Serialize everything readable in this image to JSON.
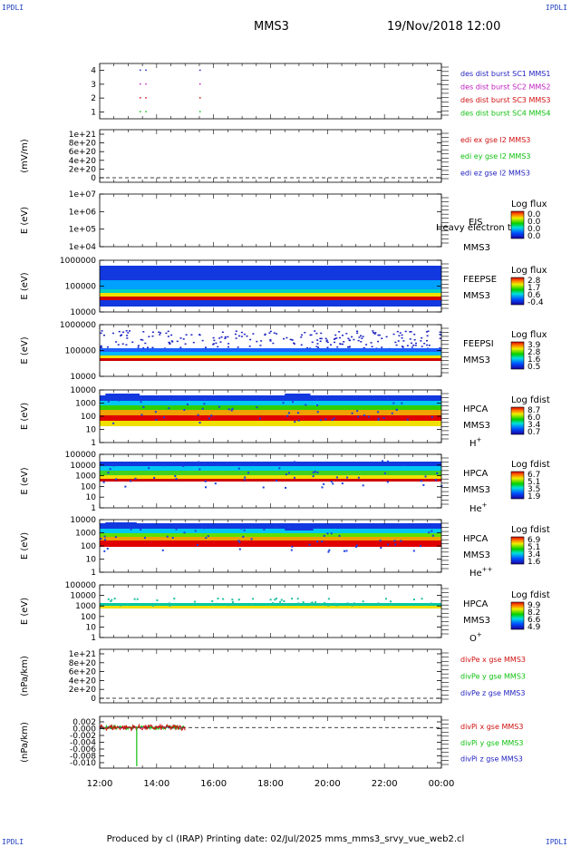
{
  "corner_tag": "IPDLI",
  "header": {
    "spacecraft": "MMS3",
    "datetime": "19/Nov/2018 12:00"
  },
  "footer": "Produced by cl (IRAP)   Printing date: 02/Jul/2025   mms_mms3_srvy_vue_web2.cl",
  "x_axis": {
    "labels": [
      "12:00",
      "14:00",
      "16:00",
      "18:00",
      "20:00",
      "22:00",
      "00:00"
    ]
  },
  "chart_data": [
    {
      "type": "scatter",
      "name_id": "burst-panel",
      "ylim": [
        0.5,
        4.5
      ],
      "yticks": [
        "1",
        "2",
        "3",
        "4"
      ],
      "points_x_hours": [
        13.4,
        13.6,
        15.5
      ],
      "legend": [
        {
          "text": "des dist burst SC1 MMS1",
          "color": "#1f1fbf"
        },
        {
          "text": "des dist burst SC2 MMS2",
          "color": "#c020c0"
        },
        {
          "text": "des dist burst SC3 MMS3",
          "color": "#d01010"
        },
        {
          "text": "des dist burst SC4 MMS4",
          "color": "#10c010"
        }
      ]
    },
    {
      "type": "line",
      "name_id": "edi-panel",
      "ylabel": "(mV/m)",
      "yticks": [
        "0",
        "2e+20",
        "4e+20",
        "6e+20",
        "8e+20",
        "1e+21"
      ],
      "legend": [
        {
          "text": "edi ex gse l2 MMS3",
          "color": "#d01010"
        },
        {
          "text": "edi ey gse l2 MMS3",
          "color": "#10c010"
        },
        {
          "text": "edi ez gse l2 MMS3",
          "color": "#1f1fbf"
        }
      ]
    },
    {
      "type": "heatmap",
      "name_id": "eis-panel",
      "ylabel": "E (eV)",
      "yticks": [
        "1e+04",
        "1e+05",
        "1e+06",
        "1e+07"
      ],
      "labels": [
        "EIS",
        "Heavy electron tof",
        "MMS3"
      ],
      "colorbar": {
        "title": "Log flux",
        "ticks": [
          "0.0",
          "0.0",
          "0.0",
          "0.0"
        ]
      }
    },
    {
      "type": "heatmap",
      "name_id": "feepse-panel",
      "ylabel": "E (eV)",
      "yticks": [
        "10000",
        "100000",
        "1000000"
      ],
      "labels": [
        "FEEPSE",
        "MMS3"
      ],
      "colorbar": {
        "title": "Log flux",
        "ticks": [
          "2.8",
          "1.7",
          "0.6",
          "-0.4"
        ]
      }
    },
    {
      "type": "heatmap",
      "name_id": "feepsi-panel",
      "ylabel": "E (eV)",
      "yticks": [
        "10000",
        "100000",
        "1000000"
      ],
      "labels": [
        "FEEPSI",
        "MMS3"
      ],
      "colorbar": {
        "title": "Log flux",
        "ticks": [
          "3.9",
          "2.8",
          "1.6",
          "0.5"
        ]
      }
    },
    {
      "type": "heatmap",
      "name_id": "hpca-h-panel",
      "ylabel": "E (eV)",
      "yticks": [
        "1",
        "10",
        "100",
        "1000",
        "10000"
      ],
      "labels": [
        "HPCA",
        "MMS3"
      ],
      "species": "H",
      "sup": "+",
      "colorbar": {
        "title": "Log fdist",
        "ticks": [
          "8.7",
          "6.0",
          "3.4",
          "0.7"
        ]
      }
    },
    {
      "type": "heatmap",
      "name_id": "hpca-he-panel",
      "ylabel": "E (eV)",
      "yticks": [
        "1",
        "10",
        "100",
        "1000",
        "10000",
        "100000"
      ],
      "labels": [
        "HPCA",
        "MMS3"
      ],
      "species": "He",
      "sup": "+",
      "colorbar": {
        "title": "Log fdist",
        "ticks": [
          "6.7",
          "5.1",
          "3.5",
          "1.9"
        ]
      }
    },
    {
      "type": "heatmap",
      "name_id": "hpca-hepp-panel",
      "ylabel": "E (eV)",
      "yticks": [
        "1",
        "10",
        "100",
        "1000",
        "10000"
      ],
      "labels": [
        "HPCA",
        "MMS3"
      ],
      "species": "He",
      "sup": "++",
      "colorbar": {
        "title": "Log fdist",
        "ticks": [
          "6.9",
          "5.1",
          "3.4",
          "1.6"
        ]
      }
    },
    {
      "type": "heatmap",
      "name_id": "hpca-o-panel",
      "ylabel": "E (eV)",
      "yticks": [
        "1",
        "10",
        "100",
        "1000",
        "10000",
        "100000"
      ],
      "labels": [
        "HPCA",
        "MMS3"
      ],
      "species": "O",
      "sup": "+",
      "colorbar": {
        "title": "Log fdist",
        "ticks": [
          "9.9",
          "8.2",
          "6.6",
          "4.9"
        ]
      }
    },
    {
      "type": "line",
      "name_id": "divpe-panel",
      "ylabel": "(nPa/km)",
      "yticks": [
        "0",
        "2e+20",
        "4e+20",
        "6e+20",
        "8e+20",
        "1e+21"
      ],
      "legend": [
        {
          "text": "divPe x gse MMS3",
          "color": "#d01010"
        },
        {
          "text": "divPe y gse MMS3",
          "color": "#10c010"
        },
        {
          "text": "divPe z gse MMS3",
          "color": "#1f1fbf"
        }
      ]
    },
    {
      "type": "line",
      "name_id": "divpi-panel",
      "ylabel": "(nPa/km)",
      "ylim": [
        -0.011,
        0.003
      ],
      "yticks": [
        "0.002",
        "0.000",
        "-0.002",
        "-0.004",
        "-0.006",
        "-0.008",
        "-0.010"
      ],
      "x_extent_hours": [
        12.0,
        15.0
      ],
      "legend": [
        {
          "text": "divPi x gse MMS3",
          "color": "#d01010"
        },
        {
          "text": "divPi y gse MMS3",
          "color": "#10c010"
        },
        {
          "text": "divPi z gse MMS3",
          "color": "#1f1fbf"
        }
      ]
    }
  ]
}
